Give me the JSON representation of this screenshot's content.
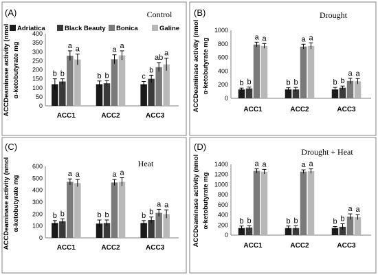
{
  "chart_data": [
    {
      "type": "bar",
      "panel_label": "(A)",
      "title": "Control",
      "ylabel_line1": "ACCDeaminase activity (nmol",
      "ylabel_line2": "α-ketobutyrate mg",
      "categories": [
        "ACC1",
        "ACC2",
        "ACC3"
      ],
      "ylim": [
        0,
        400
      ],
      "yticks": [
        "0",
        "50",
        "100",
        "150",
        "200",
        "250",
        "300",
        "350",
        "400"
      ],
      "legend": {
        "placement": "top-left",
        "entries": [
          "Adriatica",
          "Black Beauty",
          "Bonica",
          "Galine"
        ]
      },
      "series": [
        {
          "name": "Adriatica",
          "color": "#1a1a1a",
          "values": [
            120,
            120,
            120
          ],
          "errors": [
            30,
            18,
            15
          ],
          "letters": [
            "b",
            "b",
            "c"
          ]
        },
        {
          "name": "Black Beauty",
          "color": "#3a3a3a",
          "values": [
            135,
            125,
            150
          ],
          "errors": [
            15,
            15,
            20
          ],
          "letters": [
            "b",
            "b",
            "b"
          ]
        },
        {
          "name": "Bonica",
          "color": "#7a7a7a",
          "values": [
            278,
            258,
            215
          ],
          "errors": [
            27,
            25,
            25
          ],
          "letters": [
            "a",
            "a",
            "ab"
          ]
        },
        {
          "name": "Galine",
          "color": "#b8b8b8",
          "values": [
            257,
            280,
            230
          ],
          "errors": [
            30,
            25,
            35
          ],
          "letters": [
            "a",
            "a",
            "a"
          ]
        }
      ]
    },
    {
      "type": "bar",
      "panel_label": "(B)",
      "title": "Drought",
      "ylabel_line1": "ACCDeaminase activity (nmol",
      "ylabel_line2": "α-ketobutyrate mg",
      "categories": [
        "ACC1",
        "ACC2",
        "ACC3"
      ],
      "ylim": [
        0,
        1000
      ],
      "yticks": [
        "0",
        "200",
        "400",
        "600",
        "800",
        "1000"
      ],
      "series": [
        {
          "name": "Adriatica",
          "color": "#1a1a1a",
          "values": [
            130,
            130,
            130
          ],
          "errors": [
            20,
            25,
            30
          ],
          "letters": [
            "b",
            "b",
            "b"
          ]
        },
        {
          "name": "Black Beauty",
          "color": "#3a3a3a",
          "values": [
            145,
            130,
            155
          ],
          "errors": [
            20,
            30,
            25
          ],
          "letters": [
            "b",
            "b",
            "b"
          ]
        },
        {
          "name": "Bonica",
          "color": "#7a7a7a",
          "values": [
            790,
            760,
            255
          ],
          "errors": [
            35,
            35,
            40
          ],
          "letters": [
            "a",
            "a",
            "a"
          ]
        },
        {
          "name": "Galine",
          "color": "#b8b8b8",
          "values": [
            770,
            770,
            250
          ],
          "errors": [
            35,
            45,
            40
          ],
          "letters": [
            "a",
            "a",
            "a"
          ]
        }
      ]
    },
    {
      "type": "bar",
      "panel_label": "(C)",
      "title": "Heat",
      "ylabel_line1": "ACCDeaminase activity (nmol",
      "ylabel_line2": "α-ketobutyrate mg",
      "categories": [
        "ACC1",
        "ACC2",
        "ACC3"
      ],
      "ylim": [
        0,
        600
      ],
      "yticks": [
        "0",
        "100",
        "200",
        "300",
        "400",
        "500",
        "600"
      ],
      "series": [
        {
          "name": "Adriatica",
          "color": "#1a1a1a",
          "values": [
            125,
            120,
            125
          ],
          "errors": [
            20,
            30,
            20
          ],
          "letters": [
            "b",
            "b",
            "b"
          ]
        },
        {
          "name": "Black Beauty",
          "color": "#3a3a3a",
          "values": [
            140,
            125,
            150
          ],
          "errors": [
            20,
            25,
            25
          ],
          "letters": [
            "b",
            "b",
            "b"
          ]
        },
        {
          "name": "Bonica",
          "color": "#7a7a7a",
          "values": [
            470,
            465,
            210
          ],
          "errors": [
            25,
            25,
            30
          ],
          "letters": [
            "a",
            "a",
            "a"
          ]
        },
        {
          "name": "Galine",
          "color": "#b8b8b8",
          "values": [
            460,
            470,
            200
          ],
          "errors": [
            30,
            35,
            35
          ],
          "letters": [
            "a",
            "a",
            "a"
          ]
        }
      ]
    },
    {
      "type": "bar",
      "panel_label": "(D)",
      "title": "Drought + Heat",
      "ylabel_line1": "ACCDeaminase activity (nmol",
      "ylabel_line2": "α-ketobutyrate mg",
      "categories": [
        "ACC1",
        "ACC2",
        "ACC3"
      ],
      "ylim": [
        0,
        1400
      ],
      "yticks": [
        "0",
        "200",
        "400",
        "600",
        "800",
        "1000",
        "1200",
        "1400"
      ],
      "series": [
        {
          "name": "Adriatica",
          "color": "#1a1a1a",
          "values": [
            140,
            140,
            140
          ],
          "errors": [
            40,
            40,
            30
          ],
          "letters": [
            "b",
            "b",
            "b"
          ]
        },
        {
          "name": "Black Beauty",
          "color": "#3a3a3a",
          "values": [
            150,
            140,
            165
          ],
          "errors": [
            35,
            45,
            60
          ],
          "letters": [
            "b",
            "b",
            "b"
          ]
        },
        {
          "name": "Bonica",
          "color": "#7a7a7a",
          "values": [
            1270,
            1255,
            365
          ],
          "errors": [
            40,
            35,
            55
          ],
          "letters": [
            "a",
            "a",
            "a"
          ]
        },
        {
          "name": "Galine",
          "color": "#b8b8b8",
          "values": [
            1255,
            1265,
            355
          ],
          "errors": [
            45,
            45,
            50
          ],
          "letters": [
            "a",
            "a",
            "a"
          ]
        }
      ]
    }
  ]
}
